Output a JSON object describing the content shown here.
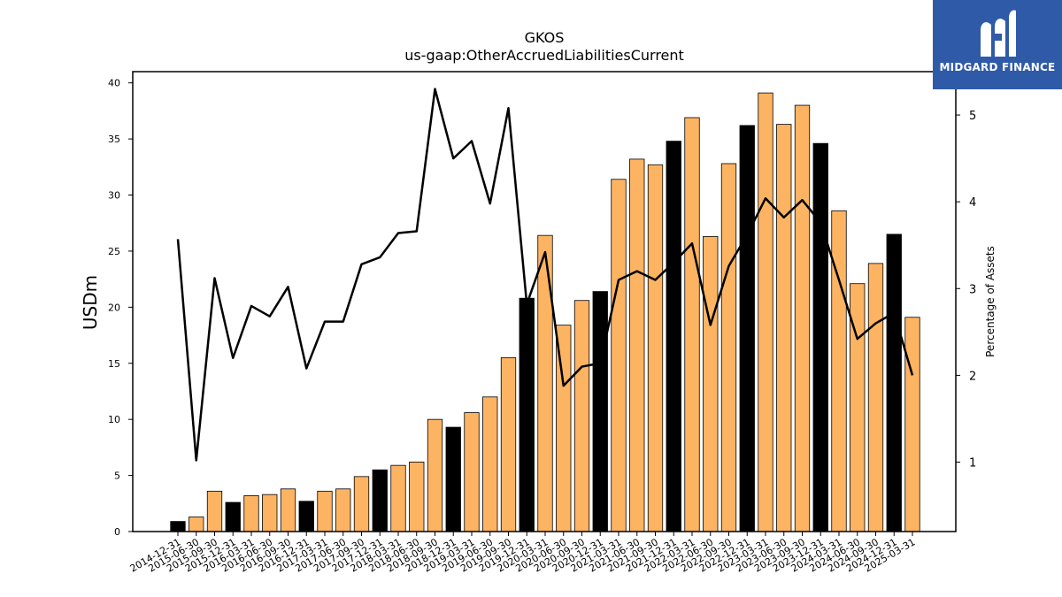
{
  "chart_data": {
    "type": "bar",
    "title": "GKOS",
    "subtitle": "us-gaap:OtherAccruedLiabilitiesCurrent",
    "ylabel": "USDm",
    "y2label": "Percentage of Assets",
    "ylim": [
      0,
      41
    ],
    "y2lim": [
      0.2,
      5.5
    ],
    "yticks": [
      0,
      5,
      10,
      15,
      20,
      25,
      30,
      35,
      40
    ],
    "y2ticks": [
      1,
      2,
      3,
      4,
      5
    ],
    "categories": [
      "2014-12-31",
      "2015-06-30",
      "2015-09-30",
      "2015-12-31",
      "2016-03-31",
      "2016-06-30",
      "2016-09-30",
      "2016-12-31",
      "2017-03-31",
      "2017-06-30",
      "2017-09-30",
      "2017-12-31",
      "2018-03-31",
      "2018-06-30",
      "2018-09-30",
      "2018-12-31",
      "2019-03-31",
      "2019-06-30",
      "2019-09-30",
      "2019-12-31",
      "2020-03-31",
      "2020-06-30",
      "2020-09-30",
      "2020-12-31",
      "2021-03-31",
      "2021-06-30",
      "2021-09-30",
      "2021-12-31",
      "2022-03-31",
      "2022-06-30",
      "2022-09-30",
      "2022-12-31",
      "2023-03-31",
      "2023-06-30",
      "2023-09-30",
      "2023-12-31",
      "2024-03-31",
      "2024-06-30",
      "2024-09-30",
      "2024-12-31",
      "2025-03-31"
    ],
    "series": [
      {
        "values": [
          0.9,
          1.3,
          3.6,
          2.6,
          3.2,
          3.3,
          3.8,
          2.7,
          3.6,
          3.8,
          4.9,
          5.5,
          5.9,
          6.2,
          10.0,
          9.3,
          10.6,
          12.0,
          15.5,
          20.8,
          26.4,
          18.4,
          20.6,
          21.4,
          31.4,
          33.2,
          32.7,
          34.8,
          36.9,
          26.3,
          32.8,
          36.2,
          39.1,
          36.3,
          38.0,
          34.6,
          28.6,
          22.1,
          23.9,
          26.5,
          19.1
        ],
        "highlight": [
          true,
          false,
          false,
          true,
          false,
          false,
          false,
          true,
          false,
          false,
          false,
          true,
          false,
          false,
          false,
          true,
          false,
          false,
          false,
          true,
          false,
          false,
          false,
          true,
          false,
          false,
          false,
          true,
          false,
          false,
          false,
          true,
          false,
          false,
          false,
          true,
          false,
          false,
          false,
          true,
          false
        ],
        "color": "#fdb462",
        "highlight_color": "#000000"
      },
      {
        "axis": "right",
        "type": "line",
        "values": [
          3.57,
          1.02,
          3.12,
          2.2,
          2.8,
          2.68,
          3.02,
          2.08,
          2.62,
          2.62,
          3.28,
          3.36,
          3.64,
          3.66,
          5.3,
          4.5,
          4.7,
          3.98,
          5.08,
          2.82,
          3.42,
          1.88,
          2.1,
          2.14,
          3.1,
          3.2,
          3.1,
          3.3,
          3.52,
          2.58,
          3.26,
          3.62,
          4.04,
          3.82,
          4.02,
          3.76,
          3.1,
          2.42,
          2.6,
          2.72,
          2.0
        ],
        "color": "#000000"
      }
    ]
  },
  "logo": {
    "text": "MIDGARD FINANCE",
    "background": "#2f5aa8"
  }
}
